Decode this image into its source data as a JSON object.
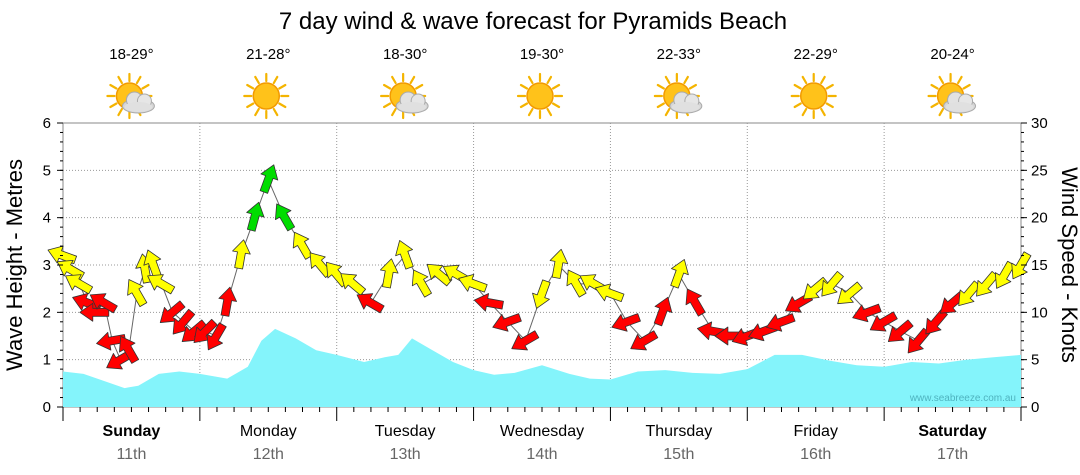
{
  "chart_data": {
    "type": "line",
    "title": "7 day wind & wave forecast for Pyramids Beach",
    "ylabel": "Wave Height - Metres",
    "y2label": "Wind Speed - Knots",
    "ylim": [
      0,
      6
    ],
    "y2lim": [
      0,
      30
    ],
    "yticks": [
      0,
      1,
      2,
      3,
      4,
      5,
      6
    ],
    "y2ticks": [
      0,
      5,
      10,
      15,
      20,
      25,
      30
    ],
    "watermark": "www.seabreeze.com.au",
    "colors": {
      "wave": "#84f4fb",
      "light": "#ffff00",
      "medium": "#00dd00",
      "strong": "#ff0000",
      "grid": "#999999"
    },
    "days": [
      {
        "name": "Sunday",
        "date": "11th",
        "bold": true,
        "temp": "18-29°",
        "weather": "partly-cloudy-icon"
      },
      {
        "name": "Monday",
        "date": "12th",
        "bold": false,
        "temp": "21-28°",
        "weather": "sunny-icon"
      },
      {
        "name": "Tuesday",
        "date": "13th",
        "bold": false,
        "temp": "18-30°",
        "weather": "partly-cloudy-icon"
      },
      {
        "name": "Wednesday",
        "date": "14th",
        "bold": false,
        "temp": "19-30°",
        "weather": "sunny-icon"
      },
      {
        "name": "Thursday",
        "date": "15th",
        "bold": false,
        "temp": "22-33°",
        "weather": "partly-cloudy-icon"
      },
      {
        "name": "Friday",
        "date": "16th",
        "bold": false,
        "temp": "22-29°",
        "weather": "sunny-icon"
      },
      {
        "name": "Saturday",
        "date": "17th",
        "bold": true,
        "temp": "20-24°",
        "weather": "partly-cloudy-icon"
      }
    ],
    "wave_height": {
      "name": "Wave Height",
      "x": [
        0,
        0.15,
        0.3,
        0.45,
        0.55,
        0.7,
        0.85,
        1.0,
        1.2,
        1.35,
        1.45,
        1.55,
        1.7,
        1.85,
        2.0,
        2.2,
        2.35,
        2.45,
        2.55,
        2.7,
        2.85,
        3.0,
        3.15,
        3.3,
        3.5,
        3.7,
        3.85,
        4.0,
        4.2,
        4.4,
        4.6,
        4.8,
        5.0,
        5.2,
        5.4,
        5.6,
        5.8,
        6.0,
        6.2,
        6.4,
        6.6,
        6.8,
        7.0
      ],
      "values": [
        0.75,
        0.7,
        0.55,
        0.4,
        0.45,
        0.7,
        0.75,
        0.7,
        0.6,
        0.85,
        1.4,
        1.65,
        1.45,
        1.2,
        1.1,
        0.95,
        1.05,
        1.1,
        1.45,
        1.2,
        0.95,
        0.78,
        0.68,
        0.72,
        0.88,
        0.7,
        0.6,
        0.58,
        0.75,
        0.78,
        0.72,
        0.7,
        0.8,
        1.1,
        1.1,
        0.98,
        0.88,
        0.85,
        0.95,
        0.92,
        1.0,
        1.05,
        1.1
      ]
    },
    "wind": {
      "name": "Wind Speed",
      "x": [
        0,
        0.06,
        0.12,
        0.18,
        0.24,
        0.3,
        0.36,
        0.42,
        0.48,
        0.54,
        0.6,
        0.66,
        0.72,
        0.8,
        0.88,
        0.96,
        1.04,
        1.12,
        1.2,
        1.3,
        1.4,
        1.5,
        1.62,
        1.75,
        1.88,
        2.0,
        2.12,
        2.25,
        2.38,
        2.5,
        2.62,
        2.75,
        2.88,
        3.0,
        3.12,
        3.25,
        3.38,
        3.5,
        3.62,
        3.75,
        3.88,
        4.0,
        4.12,
        4.25,
        4.38,
        4.5,
        4.62,
        4.75,
        4.88,
        5.0,
        5.12,
        5.25,
        5.38,
        5.5,
        5.62,
        5.75,
        5.88,
        6.0,
        6.12,
        6.25,
        6.38,
        6.5,
        6.62,
        6.75,
        6.88,
        7.0
      ],
      "values": [
        16,
        14.5,
        13,
        11,
        10,
        11,
        7,
        5,
        6,
        12,
        14.5,
        15,
        13,
        10,
        9,
        8,
        8,
        7.5,
        11,
        16,
        20,
        24,
        20,
        17,
        15,
        14,
        13,
        11,
        14,
        16,
        13,
        14,
        14,
        13,
        11,
        9,
        7,
        12,
        15,
        13,
        13,
        12,
        9,
        7,
        10,
        14,
        11,
        8,
        7.5,
        7.5,
        8,
        9,
        11,
        12.5,
        13,
        12,
        10,
        9,
        8,
        7,
        9,
        11,
        12,
        13,
        14,
        15
      ],
      "directions": [
        290,
        300,
        300,
        290,
        270,
        300,
        260,
        240,
        330,
        330,
        350,
        340,
        300,
        230,
        220,
        230,
        225,
        210,
        10,
        10,
        15,
        20,
        330,
        330,
        320,
        320,
        310,
        300,
        10,
        340,
        330,
        310,
        300,
        290,
        280,
        250,
        240,
        200,
        10,
        330,
        300,
        290,
        250,
        240,
        20,
        20,
        330,
        280,
        270,
        250,
        250,
        250,
        240,
        230,
        220,
        230,
        250,
        240,
        230,
        220,
        220,
        230,
        220,
        220,
        210,
        210
      ]
    }
  }
}
